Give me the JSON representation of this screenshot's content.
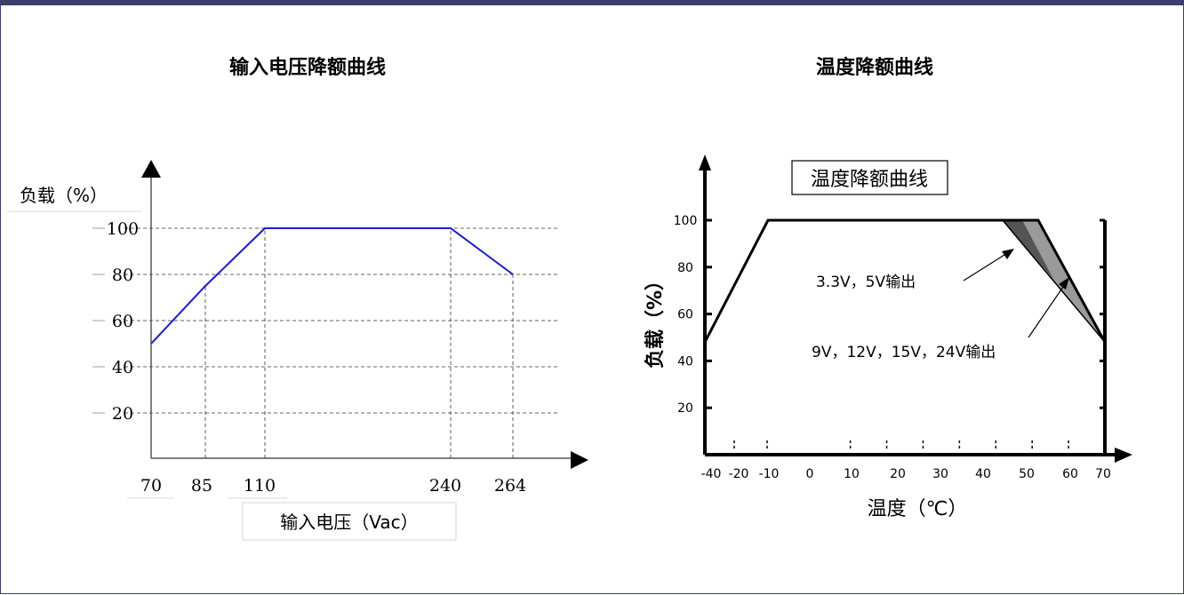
{
  "left_title": "输入电压降额曲线",
  "right_title": "温度降额曲线",
  "chart_data": [
    {
      "type": "line",
      "title": "输入电压降额曲线",
      "ylabel": "负载（%）",
      "xlabel": "输入电压（Vac）",
      "x_ticks": [
        "70",
        "85",
        "110",
        "240",
        "264"
      ],
      "y_ticks": [
        "100",
        "80",
        "60",
        "40",
        "20"
      ],
      "series": [
        {
          "x": [
            70,
            85,
            110,
            240,
            264
          ],
          "y": [
            50,
            75,
            100,
            100,
            80
          ]
        }
      ],
      "colors": {
        "line": "#1a1adb"
      },
      "grid": "dashed"
    },
    {
      "type": "line",
      "title": "温度降额曲线",
      "ylabel": "负载（%）",
      "xlabel": "温度（℃）",
      "x_ticks": [
        "-40",
        "-20",
        "-10",
        "0",
        "10",
        "20",
        "30",
        "40",
        "50",
        "60",
        "70"
      ],
      "y_ticks": [
        "100",
        "80",
        "60",
        "40",
        "20"
      ],
      "annotations": [
        "3.3V，5V输出",
        "9V，12V，15V，24V输出"
      ],
      "series": [
        {
          "x": [
            -40,
            -10,
            52,
            70
          ],
          "y": [
            48,
            100,
            100,
            48
          ]
        },
        {
          "x": [
            -40,
            -10,
            45,
            70
          ],
          "y": [
            48,
            100,
            100,
            48
          ]
        }
      ],
      "xlim": [
        -40,
        70
      ],
      "ylim": [
        0,
        100
      ]
    }
  ]
}
